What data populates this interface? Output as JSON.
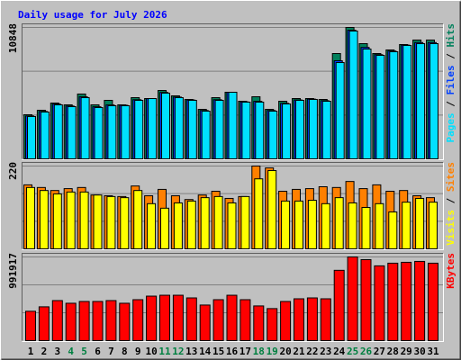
{
  "chart_data": [
    {
      "type": "bar",
      "title": "Daily usage for July 2026",
      "categories": [
        "1",
        "2",
        "3",
        "4",
        "5",
        "6",
        "7",
        "8",
        "9",
        "10",
        "11",
        "12",
        "13",
        "14",
        "15",
        "16",
        "17",
        "18",
        "19",
        "20",
        "21",
        "22",
        "23",
        "24",
        "25",
        "26",
        "27",
        "28",
        "29",
        "30",
        "31"
      ],
      "category_colors": [
        "#000000",
        "#000000",
        "#000000",
        "#008040",
        "#008040",
        "#000000",
        "#000000",
        "#000000",
        "#000000",
        "#000000",
        "#008040",
        "#008040",
        "#000000",
        "#000000",
        "#000000",
        "#000000",
        "#000000",
        "#008040",
        "#008040",
        "#000000",
        "#000000",
        "#000000",
        "#000000",
        "#000000",
        "#008040",
        "#008040",
        "#000000",
        "#000000",
        "#000000",
        "#000000",
        "#000000"
      ],
      "ylim": [
        0,
        10848
      ],
      "yticks": [
        10848
      ],
      "series": [
        {
          "name": "Hits",
          "color": "#00805c",
          "values": [
            3641,
            4012,
            4607,
            4458,
            5350,
            4458,
            4830,
            4458,
            5052,
            4978,
            5647,
            5201,
            4904,
            4087,
            5052,
            5498,
            4755,
            5127,
            4087,
            4755,
            4978,
            4978,
            4904,
            8693,
            10848,
            9510,
            8693,
            8990,
            9436,
            9808,
            9808
          ]
        },
        {
          "name": "Files",
          "color": "#0040ff",
          "values": [
            3540,
            3910,
            4520,
            4360,
            5120,
            4300,
            4450,
            4420,
            4880,
            4978,
            5480,
            5100,
            4860,
            3990,
            4880,
            5498,
            4700,
            4750,
            3990,
            4580,
            4860,
            4930,
            4800,
            8100,
            10620,
            9200,
            8600,
            8900,
            9390,
            9600,
            9600
          ]
        },
        {
          "name": "Pages",
          "color": "#00e0ff",
          "values": [
            3492,
            3864,
            4458,
            4309,
            5052,
            4235,
            4384,
            4384,
            4830,
            4978,
            5424,
            5052,
            4830,
            3938,
            4830,
            5498,
            4681,
            4681,
            3938,
            4532,
            4830,
            4904,
            4755,
            7950,
            10551,
            9065,
            8545,
            8842,
            9362,
            9510,
            9510
          ]
        }
      ]
    },
    {
      "type": "bar",
      "ylim": [
        0,
        220
      ],
      "yticks": [
        220
      ],
      "series": [
        {
          "name": "Sites",
          "color": "#ff8000",
          "values": [
            170,
            163,
            155,
            160,
            163,
            143,
            141,
            139,
            167,
            141,
            158,
            141,
            131,
            143,
            153,
            134,
            139,
            220,
            215,
            153,
            158,
            160,
            165,
            163,
            179,
            160,
            170,
            153,
            155,
            141,
            136
          ]
        },
        {
          "name": "Visits",
          "color": "#ffff00",
          "values": [
            163,
            155,
            146,
            151,
            151,
            143,
            139,
            136,
            155,
            120,
            108,
            122,
            127,
            136,
            139,
            122,
            139,
            186,
            208,
            127,
            127,
            129,
            120,
            136,
            122,
            110,
            120,
            98,
            124,
            134,
            124
          ]
        }
      ]
    },
    {
      "type": "bar",
      "ylim": [
        0,
        991917
      ],
      "yticks": [
        991917
      ],
      "series": [
        {
          "name": "KBytes",
          "color": "#ff0000",
          "values": [
            348216,
            400976,
            474840,
            443184,
            464288,
            464288,
            474840,
            443184,
            485392,
            527600,
            538152,
            538152,
            506496,
            422080,
            485392,
            538152,
            485392,
            411528,
            379872,
            464288,
            495944,
            506496,
            495944,
            833608,
            991917,
            960232,
            886368,
            918024,
            928576,
            939128,
            918024
          ]
        }
      ]
    }
  ]
}
